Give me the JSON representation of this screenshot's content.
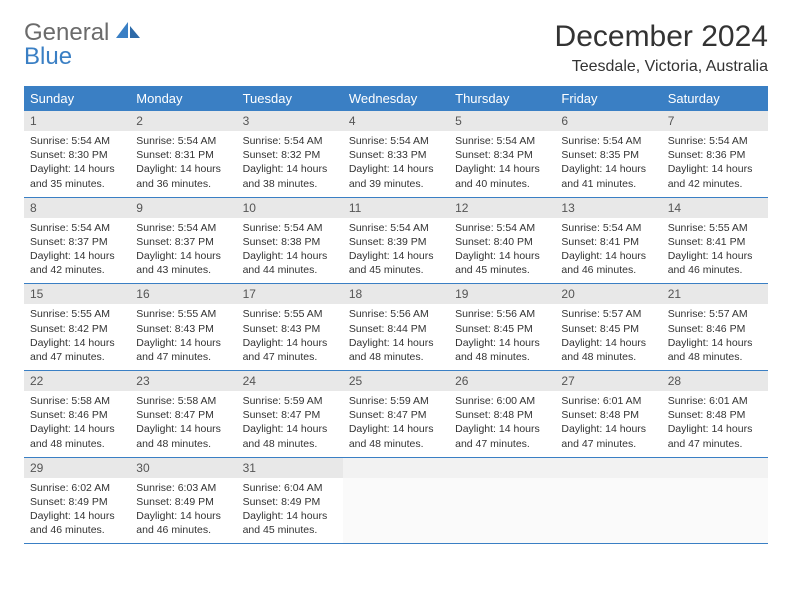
{
  "logo": {
    "general": "General",
    "blue": "Blue"
  },
  "title": "December 2024",
  "location": "Teesdale, Victoria, Australia",
  "colors": {
    "header_bg": "#3a7fc4",
    "header_fg": "#ffffff",
    "daynum_bg": "#e8e8e8",
    "border": "#3a7fc4",
    "text": "#333333"
  },
  "weekdays": [
    "Sunday",
    "Monday",
    "Tuesday",
    "Wednesday",
    "Thursday",
    "Friday",
    "Saturday"
  ],
  "weeks": [
    [
      {
        "n": "1",
        "sr": "5:54 AM",
        "ss": "8:30 PM",
        "dl": "14 hours and 35 minutes."
      },
      {
        "n": "2",
        "sr": "5:54 AM",
        "ss": "8:31 PM",
        "dl": "14 hours and 36 minutes."
      },
      {
        "n": "3",
        "sr": "5:54 AM",
        "ss": "8:32 PM",
        "dl": "14 hours and 38 minutes."
      },
      {
        "n": "4",
        "sr": "5:54 AM",
        "ss": "8:33 PM",
        "dl": "14 hours and 39 minutes."
      },
      {
        "n": "5",
        "sr": "5:54 AM",
        "ss": "8:34 PM",
        "dl": "14 hours and 40 minutes."
      },
      {
        "n": "6",
        "sr": "5:54 AM",
        "ss": "8:35 PM",
        "dl": "14 hours and 41 minutes."
      },
      {
        "n": "7",
        "sr": "5:54 AM",
        "ss": "8:36 PM",
        "dl": "14 hours and 42 minutes."
      }
    ],
    [
      {
        "n": "8",
        "sr": "5:54 AM",
        "ss": "8:37 PM",
        "dl": "14 hours and 42 minutes."
      },
      {
        "n": "9",
        "sr": "5:54 AM",
        "ss": "8:37 PM",
        "dl": "14 hours and 43 minutes."
      },
      {
        "n": "10",
        "sr": "5:54 AM",
        "ss": "8:38 PM",
        "dl": "14 hours and 44 minutes."
      },
      {
        "n": "11",
        "sr": "5:54 AM",
        "ss": "8:39 PM",
        "dl": "14 hours and 45 minutes."
      },
      {
        "n": "12",
        "sr": "5:54 AM",
        "ss": "8:40 PM",
        "dl": "14 hours and 45 minutes."
      },
      {
        "n": "13",
        "sr": "5:54 AM",
        "ss": "8:41 PM",
        "dl": "14 hours and 46 minutes."
      },
      {
        "n": "14",
        "sr": "5:55 AM",
        "ss": "8:41 PM",
        "dl": "14 hours and 46 minutes."
      }
    ],
    [
      {
        "n": "15",
        "sr": "5:55 AM",
        "ss": "8:42 PM",
        "dl": "14 hours and 47 minutes."
      },
      {
        "n": "16",
        "sr": "5:55 AM",
        "ss": "8:43 PM",
        "dl": "14 hours and 47 minutes."
      },
      {
        "n": "17",
        "sr": "5:55 AM",
        "ss": "8:43 PM",
        "dl": "14 hours and 47 minutes."
      },
      {
        "n": "18",
        "sr": "5:56 AM",
        "ss": "8:44 PM",
        "dl": "14 hours and 48 minutes."
      },
      {
        "n": "19",
        "sr": "5:56 AM",
        "ss": "8:45 PM",
        "dl": "14 hours and 48 minutes."
      },
      {
        "n": "20",
        "sr": "5:57 AM",
        "ss": "8:45 PM",
        "dl": "14 hours and 48 minutes."
      },
      {
        "n": "21",
        "sr": "5:57 AM",
        "ss": "8:46 PM",
        "dl": "14 hours and 48 minutes."
      }
    ],
    [
      {
        "n": "22",
        "sr": "5:58 AM",
        "ss": "8:46 PM",
        "dl": "14 hours and 48 minutes."
      },
      {
        "n": "23",
        "sr": "5:58 AM",
        "ss": "8:47 PM",
        "dl": "14 hours and 48 minutes."
      },
      {
        "n": "24",
        "sr": "5:59 AM",
        "ss": "8:47 PM",
        "dl": "14 hours and 48 minutes."
      },
      {
        "n": "25",
        "sr": "5:59 AM",
        "ss": "8:47 PM",
        "dl": "14 hours and 48 minutes."
      },
      {
        "n": "26",
        "sr": "6:00 AM",
        "ss": "8:48 PM",
        "dl": "14 hours and 47 minutes."
      },
      {
        "n": "27",
        "sr": "6:01 AM",
        "ss": "8:48 PM",
        "dl": "14 hours and 47 minutes."
      },
      {
        "n": "28",
        "sr": "6:01 AM",
        "ss": "8:48 PM",
        "dl": "14 hours and 47 minutes."
      }
    ],
    [
      {
        "n": "29",
        "sr": "6:02 AM",
        "ss": "8:49 PM",
        "dl": "14 hours and 46 minutes."
      },
      {
        "n": "30",
        "sr": "6:03 AM",
        "ss": "8:49 PM",
        "dl": "14 hours and 46 minutes."
      },
      {
        "n": "31",
        "sr": "6:04 AM",
        "ss": "8:49 PM",
        "dl": "14 hours and 45 minutes."
      },
      null,
      null,
      null,
      null
    ]
  ],
  "labels": {
    "sunrise": "Sunrise:",
    "sunset": "Sunset:",
    "daylight": "Daylight:"
  }
}
